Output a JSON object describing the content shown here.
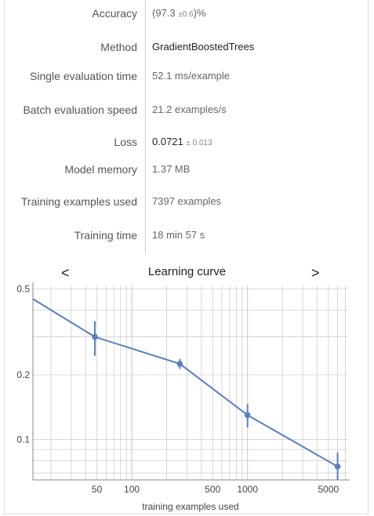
{
  "metrics": [
    {
      "label": "Accuracy",
      "value_html": "(97.3 <span class='pm'>±0.6</span>)%",
      "value": "(97.3 ±0.6)%",
      "dark": false
    },
    {
      "label": "Method",
      "value": "GradientBoostedTrees",
      "dark": true
    },
    {
      "label": "Single evaluation time",
      "value": "52.1 ms/example",
      "dark": false
    },
    {
      "label": "Batch evaluation speed",
      "value": "21.2 examples/s",
      "dark": false
    },
    {
      "label": "Loss",
      "value_html": "0.0721 <span class='pm'>± 0.013</span>",
      "value": "0.0721 ± 0.013",
      "dark": true
    },
    {
      "label": "Model memory",
      "value": "1.37 MB",
      "dark": false
    },
    {
      "label": "Training examples used",
      "value": "7397 examples",
      "dark": false
    },
    {
      "label": "Training time",
      "value": "18 min 57 s",
      "dark": false
    }
  ],
  "nav": {
    "prev": "<",
    "next": ">"
  },
  "colors": {
    "series": "#5b7fb5",
    "grid": "#c8c8c8",
    "axis": "#888888"
  },
  "chart_data": {
    "type": "line",
    "title": "Learning curve",
    "xlabel": "training examples used",
    "ylabel": "",
    "xscale": "log",
    "yscale": "log",
    "xlim": [
      14,
      7400
    ],
    "ylim": [
      0.065,
      0.52
    ],
    "x_ticks": [
      50,
      100,
      500,
      1000,
      5000
    ],
    "x_tick_labels": [
      "50",
      "100",
      "500",
      "1000",
      "5000"
    ],
    "y_ticks": [
      0.1,
      0.2,
      0.5
    ],
    "y_tick_labels": [
      "0.1",
      "0.2",
      "0.5"
    ],
    "grid": true,
    "series": [
      {
        "x": [
          14,
          48,
          260,
          1000,
          6000
        ],
        "y": [
          0.45,
          0.3,
          0.225,
          0.13,
          0.075
        ],
        "err": [
          0,
          0.055,
          0.012,
          0.016,
          0.012
        ]
      }
    ]
  }
}
